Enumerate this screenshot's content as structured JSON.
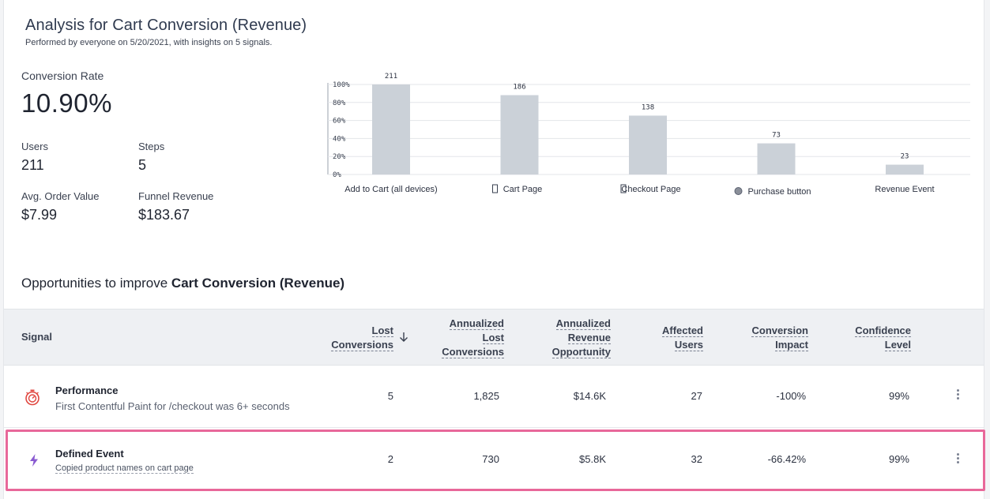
{
  "header": {
    "title": "Analysis for Cart Conversion (Revenue)",
    "subtitle": "Performed by everyone on 5/20/2021, with insights on 5 signals."
  },
  "metrics": {
    "conversion_rate_label": "Conversion Rate",
    "conversion_rate_value": "10.90%",
    "users_label": "Users",
    "users_value": "211",
    "steps_label": "Steps",
    "steps_value": "5",
    "aov_label": "Avg. Order Value",
    "aov_value": "$7.99",
    "funnel_revenue_label": "Funnel Revenue",
    "funnel_revenue_value": "$183.67"
  },
  "chart_data": {
    "type": "bar",
    "categories": [
      "Add to Cart (all devices)",
      "Cart Page",
      "Checkout Page",
      "Purchase button",
      "Revenue Event"
    ],
    "category_icons": [
      "",
      "page-icon",
      "page-icon",
      "button-icon",
      ""
    ],
    "values": [
      211,
      186,
      138,
      73,
      23
    ],
    "value_labels": [
      "211",
      "186",
      "138",
      "73",
      "23"
    ],
    "y_tick_labels": [
      "0%",
      "20%",
      "40%",
      "60%",
      "80%",
      "100%"
    ],
    "ylim": [
      0,
      100
    ],
    "grid": true,
    "bar_color": "#cbd1d8"
  },
  "opportunities": {
    "prefix": "Opportunities to improve ",
    "target": "Cart Conversion (Revenue)"
  },
  "table": {
    "columns": {
      "signal": "Signal",
      "lost_conv": [
        "Lost",
        "Conversions"
      ],
      "ann_lost_conv": [
        "Annualized",
        "Lost",
        "Conversions"
      ],
      "ann_rev_opp": [
        "Annualized",
        "Revenue",
        "Opportunity"
      ],
      "affected_users": [
        "Affected",
        "Users"
      ],
      "conv_impact": [
        "Conversion",
        "Impact"
      ],
      "confidence": [
        "Confidence",
        "Level"
      ]
    },
    "sort_icon": "arrow-down-icon",
    "rows": [
      {
        "title": "Performance",
        "desc": "First Contentful Paint for /checkout was 6+ seconds",
        "icon": "stopwatch-icon",
        "icon_color": "#e0463f",
        "lost_conv": "5",
        "ann_lost_conv": "1,825",
        "ann_rev_opp": "$14.6K",
        "affected_users": "27",
        "conv_impact": "-100%",
        "confidence": "99%"
      },
      {
        "title": "Defined Event",
        "desc": "Copied product names on cart page",
        "icon": "lightning-icon",
        "icon_color": "#8a5bd1",
        "lost_conv": "2",
        "ann_lost_conv": "730",
        "ann_rev_opp": "$5.8K",
        "affected_users": "32",
        "conv_impact": "-66.42%",
        "confidence": "99%"
      }
    ]
  },
  "highlight_color": "#e8689a"
}
